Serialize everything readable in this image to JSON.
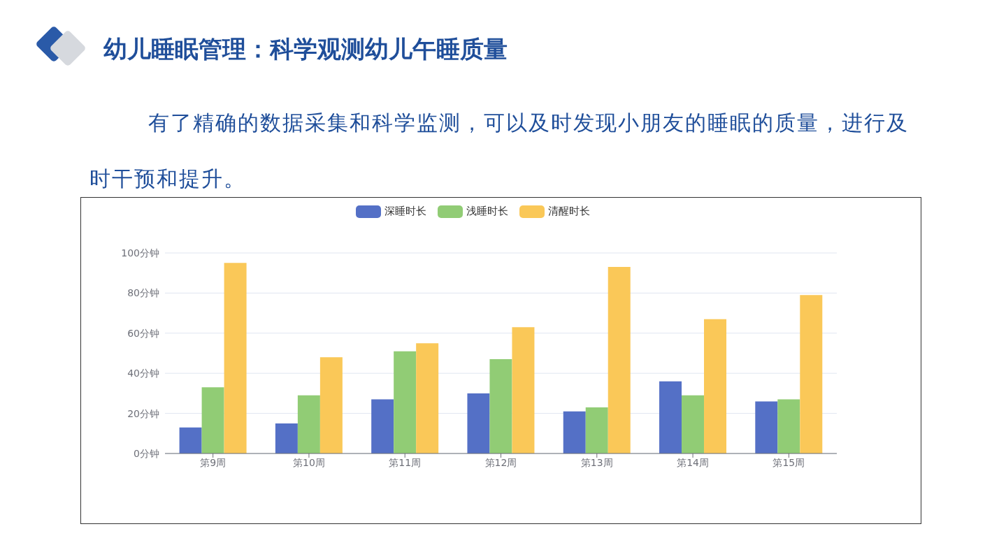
{
  "chart_data": {
    "type": "bar",
    "title": "幼儿睡眠管理：科学观测幼儿午睡质量",
    "subtitle": "有了精确的数据采集和科学监测，可以及时发现小朋友的睡眠的质量，进行及时干预和提升。",
    "categories": [
      "第9周",
      "第10周",
      "第11周",
      "第12周",
      "第13周",
      "第14周",
      "第15周"
    ],
    "series": [
      {
        "name": "深睡时长",
        "color": "#5470c6",
        "values": [
          13,
          15,
          27,
          30,
          21,
          36,
          26
        ]
      },
      {
        "name": "浅睡时长",
        "color": "#91cc75",
        "values": [
          33,
          29,
          51,
          47,
          23,
          29,
          27
        ]
      },
      {
        "name": "清醒时长",
        "color": "#fac858",
        "values": [
          95,
          48,
          55,
          63,
          93,
          67,
          79
        ]
      }
    ],
    "ylim": [
      0,
      100
    ],
    "yticks": [
      {
        "value": 0,
        "label": "0分钟"
      },
      {
        "value": 20,
        "label": "20分钟"
      },
      {
        "value": 40,
        "label": "40分钟"
      },
      {
        "value": 60,
        "label": "60分钟"
      },
      {
        "value": 80,
        "label": "80分钟"
      },
      {
        "value": 100,
        "label": "100分钟"
      }
    ],
    "grid": "y",
    "legend": "top"
  }
}
